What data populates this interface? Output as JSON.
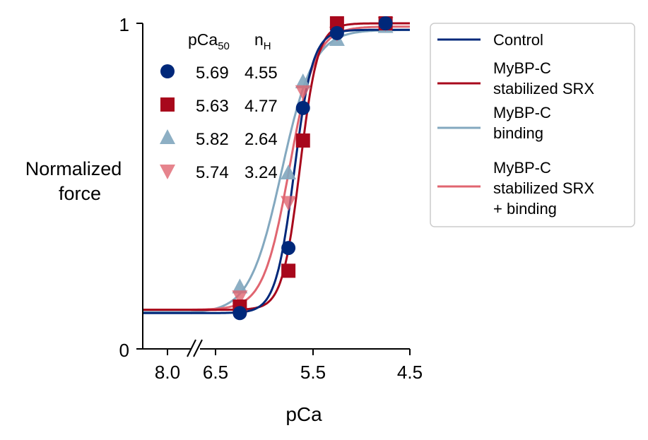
{
  "chart_data": {
    "type": "line",
    "xlabel": "pCa",
    "ylabel_line1": "Normalized",
    "ylabel_line2": "force",
    "ylim": [
      0,
      1
    ],
    "xlim": [
      6.75,
      4.5
    ],
    "x_ticks": [
      "6.5",
      "5.5",
      "4.5"
    ],
    "x_break_tick": "8.0",
    "y_ticks": [
      "0",
      "1"
    ],
    "x_reversed": true,
    "axis_break": true,
    "table_header": {
      "col1": "pCa",
      "col1_sub": "50",
      "col2": "n",
      "col2_sub": "H"
    },
    "legend_position": "outside-right",
    "series": [
      {
        "name": "Control",
        "pCa50": "5.69",
        "nH": "4.55",
        "color": "#00287a",
        "marker": "circle",
        "line_label": [
          "Control"
        ],
        "fit": {
          "pCa50": 5.69,
          "nH": 4.55,
          "min": 0.11,
          "max": 0.98
        },
        "x": [
          8.0,
          6.25,
          5.75,
          5.6,
          5.25,
          4.75
        ],
        "y": [
          0.12,
          0.11,
          0.31,
          0.74,
          0.97,
          1.0
        ]
      },
      {
        "name": "MyBP-C stabilized SRX",
        "pCa50": "5.63",
        "nH": "4.77",
        "color": "#a8081c",
        "marker": "square",
        "line_label": [
          "MyBP-C",
          "stabilized SRX"
        ],
        "fit": {
          "pCa50": 5.63,
          "nH": 4.77,
          "min": 0.12,
          "max": 1.0
        },
        "x": [
          8.0,
          6.25,
          5.75,
          5.6,
          5.25,
          4.75
        ],
        "y": [
          0.12,
          0.13,
          0.24,
          0.64,
          1.0,
          1.0
        ]
      },
      {
        "name": "MyBP-C binding",
        "pCa50": "5.82",
        "nH": "2.64",
        "color": "#83a8bf",
        "marker": "triangle-up",
        "line_label": [
          "MyBP-C",
          "binding"
        ],
        "fit": {
          "pCa50": 5.82,
          "nH": 2.64,
          "min": 0.11,
          "max": 0.98
        },
        "x": [
          8.0,
          6.25,
          5.75,
          5.6,
          5.25,
          4.75
        ],
        "y": [
          0.11,
          0.19,
          0.54,
          0.82,
          0.95,
          0.99
        ]
      },
      {
        "name": "MyBP-C stabilized SRX + binding",
        "pCa50": "5.74",
        "nH": "3.24",
        "color": "#e06570",
        "marker": "triangle-down",
        "line_label": [
          "MyBP-C",
          "stabilized SRX",
          "+ binding"
        ],
        "fit": {
          "pCa50": 5.74,
          "nH": 3.24,
          "min": 0.12,
          "max": 0.99
        },
        "x": [
          8.0,
          6.25,
          5.75,
          5.6,
          5.25,
          4.75
        ],
        "y": [
          0.12,
          0.16,
          0.45,
          0.79,
          0.97,
          1.0
        ]
      }
    ]
  }
}
